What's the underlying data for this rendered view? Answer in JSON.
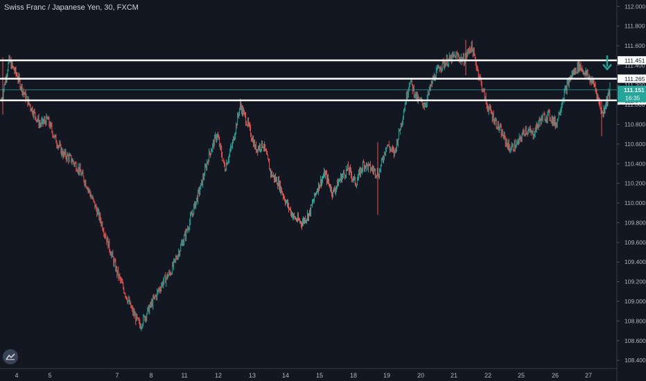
{
  "header": {
    "symbol_title": "Swiss Franc / Japanese Yen, 30, FXCM"
  },
  "colors": {
    "background": "#131722",
    "up_candle": "#26a69a",
    "down_candle": "#ef5350",
    "level_line": "#ffffff",
    "price_line": "#26a69a",
    "arrow": "#26a69a",
    "axis_text": "#b2b5be"
  },
  "icons": {
    "logo": "tradingview-logo-icon",
    "arrow": "arrow-down-icon"
  },
  "chart_data": {
    "type": "candlestick",
    "title": "Swiss Franc / Japanese Yen, 30, FXCM",
    "ylim": [
      108.38,
      112.03
    ],
    "yticks": [
      "112.000",
      "111.800",
      "111.600",
      "111.400",
      "111.200",
      "111.000",
      "110.800",
      "110.600",
      "110.400",
      "110.200",
      "110.000",
      "109.800",
      "109.600",
      "109.400",
      "109.200",
      "109.000",
      "108.800",
      "108.600",
      "108.400"
    ],
    "xtick_labels": [
      "4",
      "5",
      "7",
      "8",
      "11",
      "12",
      "13",
      "14",
      "15",
      "18",
      "19",
      "20",
      "21",
      "22",
      "25",
      "26",
      "27"
    ],
    "close_path": [
      [
        0,
        111.05
      ],
      [
        1,
        111.45
      ],
      [
        2,
        111.3
      ],
      [
        3,
        111.1
      ],
      [
        4,
        110.95
      ],
      [
        5,
        110.8
      ],
      [
        6,
        110.85
      ],
      [
        7,
        110.65
      ],
      [
        8,
        110.5
      ],
      [
        9,
        110.45
      ],
      [
        10,
        110.35
      ],
      [
        11,
        110.2
      ],
      [
        12,
        110.0
      ],
      [
        13,
        109.8
      ],
      [
        14,
        109.55
      ],
      [
        15,
        109.3
      ],
      [
        16,
        109.1
      ],
      [
        17,
        108.9
      ],
      [
        18,
        108.75
      ],
      [
        19,
        108.9
      ],
      [
        20,
        109.05
      ],
      [
        21,
        109.2
      ],
      [
        22,
        109.3
      ],
      [
        23,
        109.5
      ],
      [
        24,
        109.7
      ],
      [
        25,
        109.95
      ],
      [
        26,
        110.2
      ],
      [
        27,
        110.5
      ],
      [
        28,
        110.7
      ],
      [
        29,
        110.35
      ],
      [
        30,
        110.6
      ],
      [
        31,
        111.0
      ],
      [
        32,
        110.8
      ],
      [
        33,
        110.55
      ],
      [
        34,
        110.6
      ],
      [
        35,
        110.3
      ],
      [
        36,
        110.2
      ],
      [
        37,
        110.0
      ],
      [
        38,
        109.85
      ],
      [
        39,
        109.8
      ],
      [
        40,
        109.9
      ],
      [
        41,
        110.15
      ],
      [
        42,
        110.3
      ],
      [
        43,
        110.1
      ],
      [
        44,
        110.25
      ],
      [
        45,
        110.35
      ],
      [
        46,
        110.2
      ],
      [
        47,
        110.4
      ],
      [
        48,
        110.35
      ],
      [
        49,
        110.3
      ],
      [
        50,
        110.6
      ],
      [
        51,
        110.5
      ],
      [
        52,
        110.85
      ],
      [
        53,
        111.25
      ],
      [
        54,
        111.05
      ],
      [
        55,
        111.0
      ],
      [
        56,
        111.25
      ],
      [
        57,
        111.4
      ],
      [
        58,
        111.45
      ],
      [
        59,
        111.5
      ],
      [
        60,
        111.45
      ],
      [
        61,
        111.6
      ],
      [
        62,
        111.3
      ],
      [
        63,
        111.0
      ],
      [
        64,
        110.85
      ],
      [
        65,
        110.7
      ],
      [
        66,
        110.55
      ],
      [
        67,
        110.6
      ],
      [
        68,
        110.75
      ],
      [
        69,
        110.7
      ],
      [
        70,
        110.85
      ],
      [
        71,
        110.9
      ],
      [
        72,
        110.8
      ],
      [
        73,
        111.1
      ],
      [
        74,
        111.3
      ],
      [
        75,
        111.4
      ],
      [
        76,
        111.3
      ],
      [
        77,
        111.2
      ],
      [
        78,
        110.9
      ],
      [
        79,
        111.15
      ]
    ],
    "horizontal_levels": [
      "111.451",
      "111.265",
      "111.044"
    ],
    "price_line": "111.151",
    "price_badge": [
      "111.151",
      "16:35"
    ],
    "level_labels": [
      "111.451",
      "111.265",
      "111.044"
    ],
    "price_label": "111.151",
    "countdown_label": "16:35",
    "grid": false,
    "legend": "none"
  }
}
